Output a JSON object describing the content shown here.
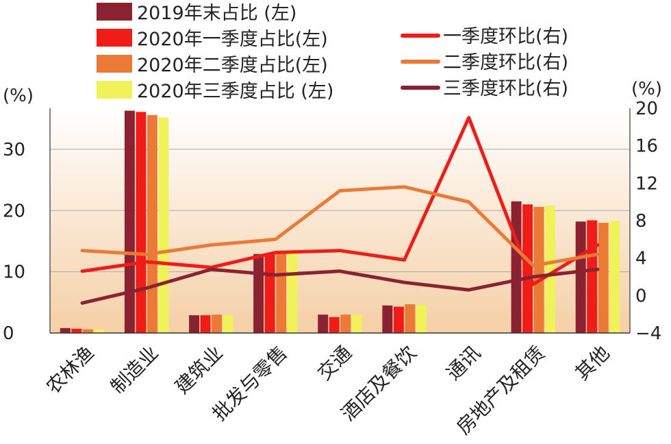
{
  "chart_data": {
    "type": "bar",
    "categories": [
      "农林渔",
      "制造业",
      "建筑业",
      "批发与零售",
      "交通",
      "酒店及餐饮",
      "通讯",
      "房地产及租赁",
      "其他"
    ],
    "series": [
      {
        "name": "2019年末占比 (左)",
        "kind": "bar",
        "axis": "left",
        "color": "#8b2232",
        "values": [
          0.8,
          36.3,
          2.9,
          12.9,
          3.0,
          4.5,
          null,
          21.5,
          18.2
        ]
      },
      {
        "name": "2020年一季度占比(左)",
        "kind": "bar",
        "axis": "left",
        "color": "#f01c17",
        "values": [
          0.7,
          36.1,
          2.9,
          13.0,
          2.6,
          4.3,
          null,
          21.0,
          18.4
        ]
      },
      {
        "name": "2020年二季度占比(左)",
        "kind": "bar",
        "axis": "left",
        "color": "#ec7a37",
        "values": [
          0.6,
          35.6,
          3.0,
          13.1,
          3.0,
          4.7,
          null,
          20.6,
          18.0
        ]
      },
      {
        "name": "2020年三季度占比 (左)",
        "kind": "bar",
        "axis": "left",
        "color": "#f0f25a",
        "values": [
          0.6,
          35.2,
          2.9,
          13.0,
          3.0,
          4.6,
          null,
          20.8,
          18.3
        ]
      },
      {
        "name": "一季度环比(右)",
        "kind": "line",
        "axis": "right",
        "color": "#f01c17",
        "values": [
          2.6,
          3.6,
          3.0,
          4.6,
          4.8,
          3.8,
          19.0,
          1.2,
          5.4
        ]
      },
      {
        "name": "二季度环比(右)",
        "kind": "line",
        "axis": "right",
        "color": "#ec7a37",
        "values": [
          4.8,
          4.4,
          5.4,
          6.0,
          11.2,
          11.6,
          10.0,
          3.2,
          4.4
        ]
      },
      {
        "name": "三季度环比(右)",
        "kind": "line",
        "axis": "right",
        "color": "#8b2232",
        "values": [
          -0.8,
          0.8,
          2.8,
          2.2,
          2.6,
          1.4,
          0.6,
          2.0,
          2.8
        ]
      }
    ],
    "ylabel_left": "(%)",
    "ylabel_right": "(%)",
    "ylim_left": [
      0,
      36.7
    ],
    "yticks_left": [
      "0",
      "10",
      "20",
      "30"
    ],
    "ylim_right": [
      -4,
      20
    ],
    "yticks_right": [
      "-4",
      "0",
      "4",
      "8",
      "12",
      "16",
      "20"
    ],
    "legend_position": "top",
    "background_gradient": [
      "#ffffff",
      "#f5cfa6"
    ]
  }
}
